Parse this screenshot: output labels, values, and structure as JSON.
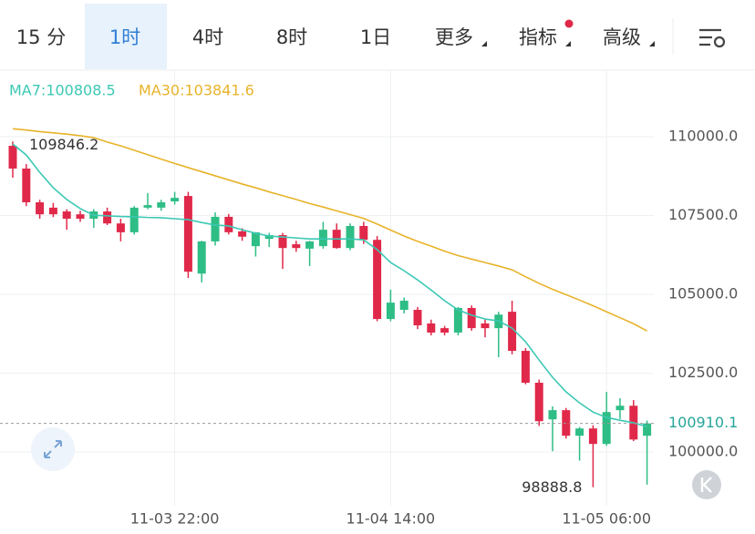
{
  "tabs": [
    "15 分",
    "1时",
    "4时",
    "8时",
    "1日",
    "更多",
    "指标",
    "高级"
  ],
  "selected_tab": 1,
  "chart_data": {
    "type": "candlestick",
    "categories": [
      null,
      null,
      null,
      null,
      null,
      null,
      null,
      null,
      null,
      null,
      null,
      null,
      "11-03 22:00",
      null,
      null,
      null,
      null,
      null,
      null,
      null,
      null,
      null,
      null,
      null,
      null,
      null,
      null,
      null,
      "11-04 14:00",
      null,
      null,
      null,
      null,
      null,
      null,
      null,
      null,
      null,
      null,
      null,
      null,
      null,
      null,
      null,
      "11-05 06:00",
      null,
      null,
      null
    ],
    "open": [
      109710,
      108990,
      107920,
      107750,
      107630,
      107540,
      107400,
      107630,
      107250,
      106970,
      107750,
      107750,
      107950,
      108120,
      105660,
      106680,
      107460,
      107000,
      106530,
      106760,
      106880,
      106590,
      106450,
      106530,
      107050,
      106470,
      107170,
      106730,
      104220,
      104510,
      104510,
      104080,
      103930,
      103790,
      104570,
      104080,
      103930,
      104450,
      103210,
      102200,
      101040,
      101330,
      100520,
      100750,
      100260,
      101330,
      101470,
      100520
    ],
    "high": [
      109846.2,
      109130,
      108000,
      107900,
      107700,
      107650,
      107700,
      107750,
      107400,
      107800,
      108210,
      108000,
      108250,
      108250,
      106700,
      107600,
      107550,
      107100,
      106970,
      106950,
      106950,
      106700,
      106700,
      107300,
      107250,
      107250,
      107300,
      106850,
      105150,
      104900,
      104600,
      104200,
      104000,
      104600,
      104650,
      104200,
      104450,
      104800,
      103300,
      102300,
      101450,
      101400,
      100800,
      100850,
      101910,
      101710,
      101650,
      101000
    ],
    "low": [
      108700,
      107800,
      107400,
      107450,
      107050,
      107300,
      107110,
      107200,
      106680,
      106900,
      107700,
      107650,
      107850,
      105520,
      105380,
      106550,
      106900,
      106700,
      106200,
      106500,
      105810,
      106350,
      105900,
      106450,
      106450,
      106400,
      106600,
      104150,
      104150,
      104400,
      103900,
      103700,
      103700,
      103700,
      103850,
      103640,
      103010,
      103100,
      102150,
      100830,
      100030,
      100430,
      99730,
      98888.8,
      100200,
      101050,
      100350,
      98970
    ],
    "close": [
      108990,
      107920,
      107540,
      107540,
      107400,
      107400,
      107630,
      107250,
      106970,
      107750,
      107830,
      107920,
      108060,
      105720,
      106680,
      107460,
      106970,
      106830,
      106970,
      106880,
      106470,
      106470,
      106680,
      107050,
      106470,
      107170,
      106730,
      104220,
      104740,
      104800,
      104020,
      103790,
      103790,
      104570,
      103930,
      103930,
      104360,
      103210,
      102200,
      100980,
      101330,
      100520,
      100750,
      100260,
      101270,
      101470,
      100400,
      100910.1
    ],
    "up_color": "#2ebd85",
    "down_color": "#e0294a",
    "max_index": 0,
    "min_index": 43,
    "last_price": 100910.1,
    "series": [
      {
        "name": "MA7",
        "legend_label": "MA7:100808.5",
        "color": "#3cc8b4",
        "values": [
          109770,
          109420,
          108870,
          108380,
          108010,
          107720,
          107510,
          107490,
          107470,
          107460,
          107440,
          107430,
          107400,
          107370,
          107280,
          107200,
          107170,
          107050,
          106940,
          106850,
          106820,
          106790,
          106760,
          106760,
          106760,
          106760,
          106730,
          106420,
          106010,
          105750,
          105460,
          105140,
          104800,
          104510,
          104340,
          104220,
          104160,
          103930,
          103500,
          102920,
          102370,
          101910,
          101560,
          101270,
          101100,
          101010,
          100930,
          100808.5
        ]
      },
      {
        "name": "MA30",
        "legend_label": "MA30:103841.6",
        "color": "#e8b32a",
        "values": [
          110250,
          110210,
          110160,
          110120,
          110080,
          110030,
          109970,
          109830,
          109710,
          109570,
          109430,
          109290,
          109150,
          109020,
          108890,
          108760,
          108630,
          108500,
          108380,
          108250,
          108130,
          108010,
          107880,
          107770,
          107650,
          107530,
          107410,
          107230,
          107040,
          106850,
          106680,
          106530,
          106370,
          106230,
          106120,
          106010,
          105900,
          105780,
          105560,
          105350,
          105160,
          104990,
          104820,
          104640,
          104450,
          104260,
          104070,
          103841.6
        ]
      }
    ],
    "ylim": [
      98300,
      112080
    ],
    "yticks": [
      {
        "value": 110000,
        "label": "110000.0"
      },
      {
        "value": 107500,
        "label": "107500.0"
      },
      {
        "value": 105000,
        "label": "105000.0"
      },
      {
        "value": 102500,
        "label": "102500.0"
      },
      {
        "value": 100000,
        "label": "100000.0"
      }
    ],
    "grid": true
  }
}
